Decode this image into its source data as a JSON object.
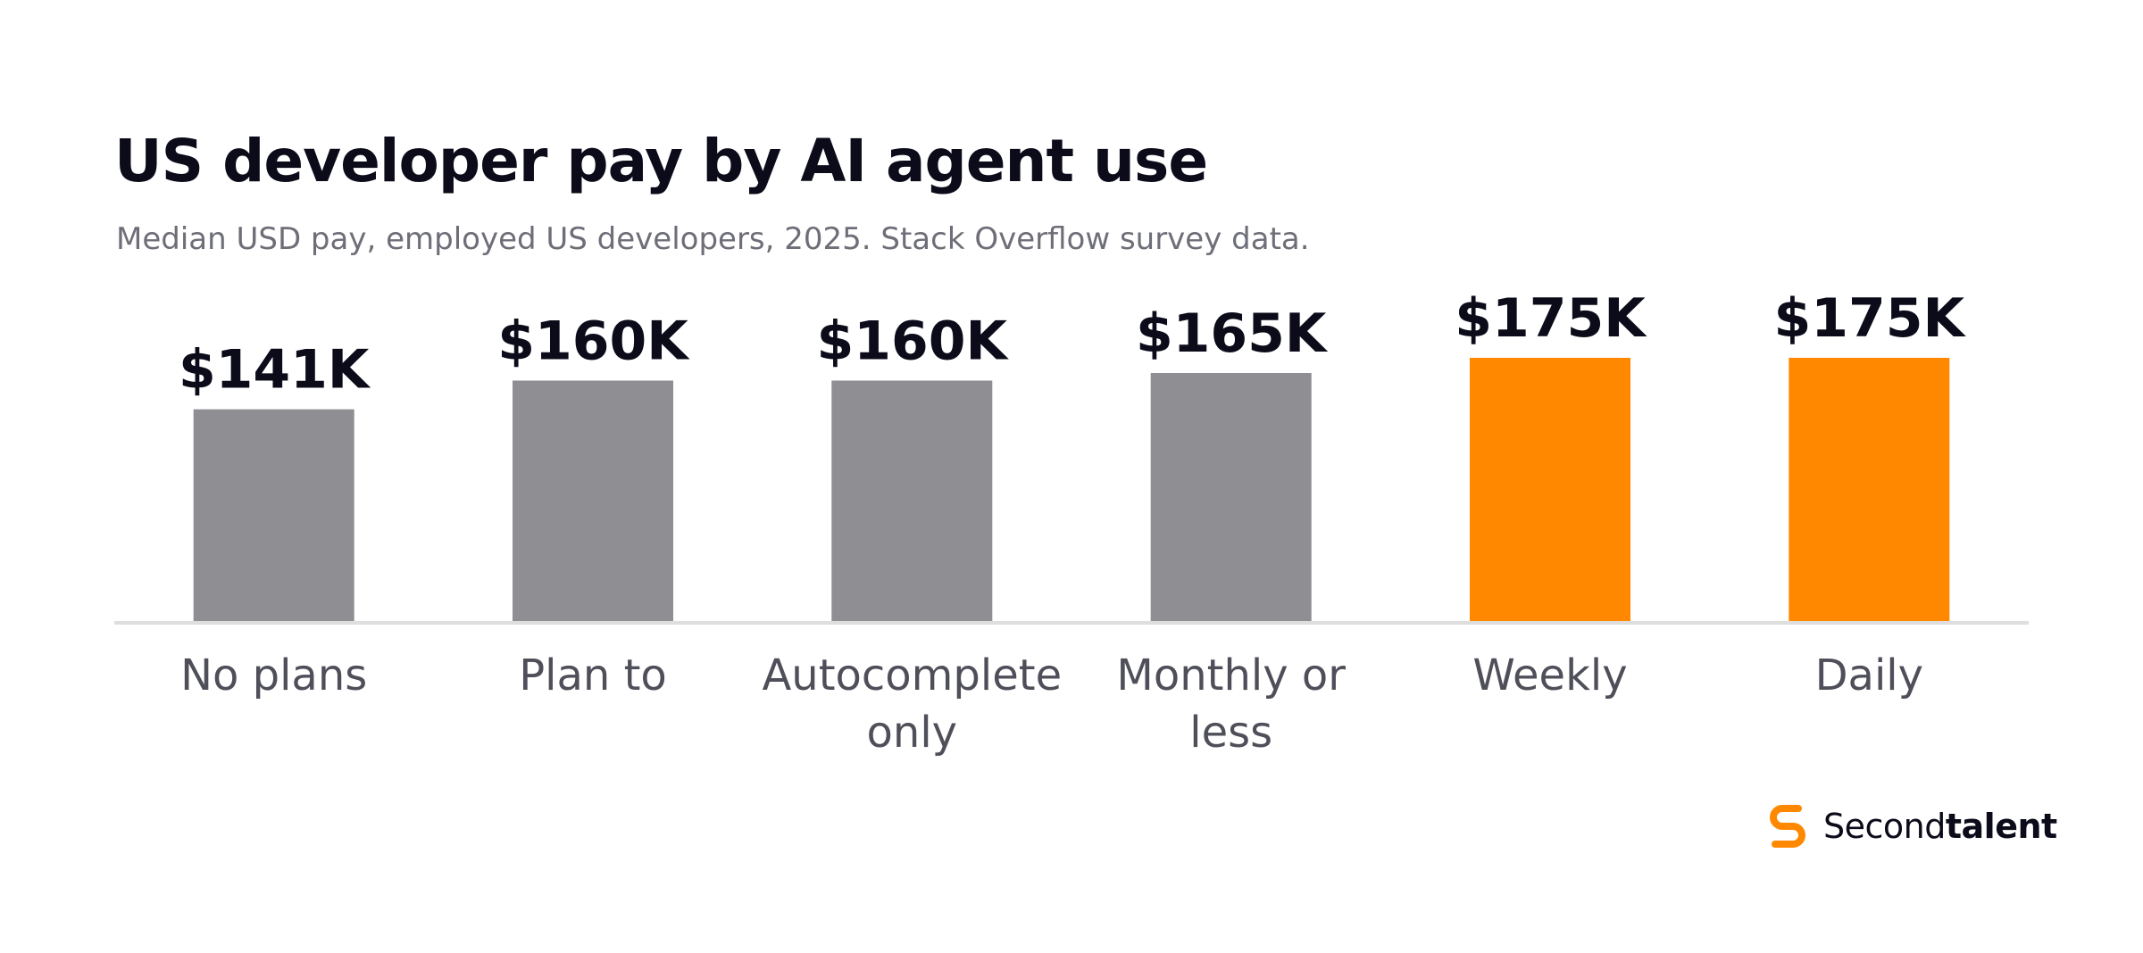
{
  "chart_data": {
    "type": "bar",
    "title": "US developer pay by AI agent use",
    "subtitle": "Median USD pay, employed US developers, 2025. Stack Overflow survey data.",
    "categories": [
      [
        "No plans"
      ],
      [
        "Plan to"
      ],
      [
        "Autocomplete",
        "only"
      ],
      [
        "Monthly or",
        "less"
      ],
      [
        "Weekly"
      ],
      [
        "Daily"
      ]
    ],
    "values": [
      141,
      160,
      160,
      165,
      175,
      175
    ],
    "value_labels": [
      "$141K",
      "$160K",
      "$160K",
      "$165K",
      "$175K",
      "$175K"
    ],
    "unit": "USD thousands",
    "ylim": [
      0,
      175
    ],
    "grid": false,
    "highlight_color": "#FF8800",
    "base_color": "#8E8E93",
    "highlighted": [
      false,
      false,
      false,
      false,
      true,
      true
    ]
  },
  "brand": {
    "name_regular": "Second",
    "name_bold": "talent",
    "icon": "secondtalent-logo-icon",
    "color": "#FF8800"
  }
}
